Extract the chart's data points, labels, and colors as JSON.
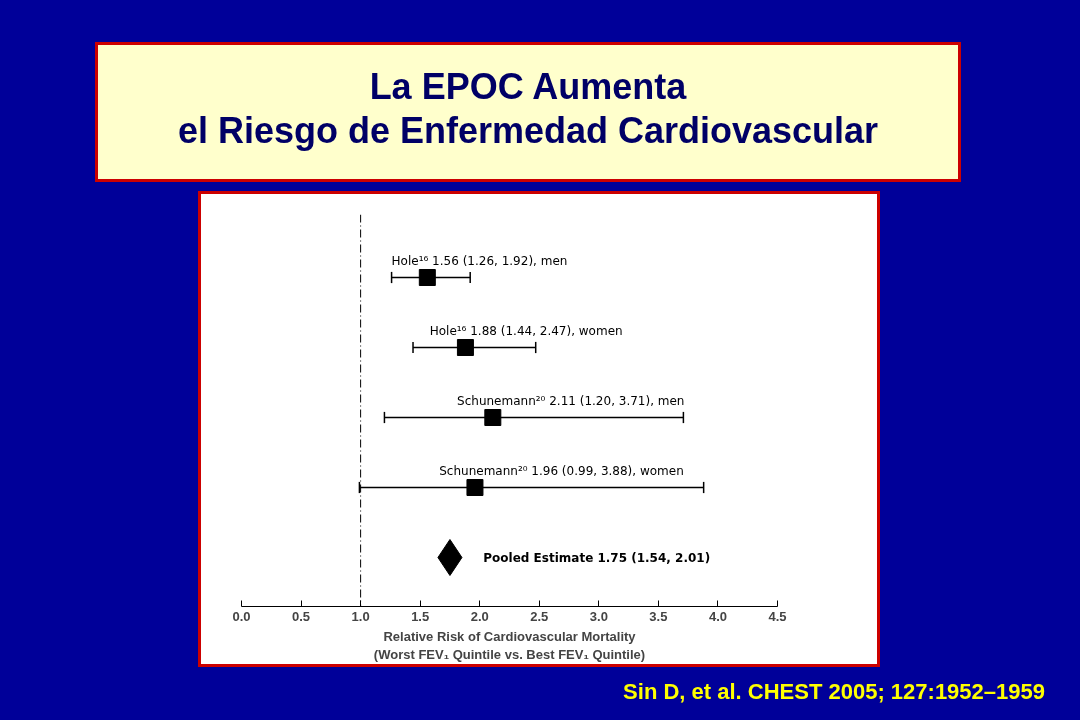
{
  "chart_data": {
    "type": "scatter",
    "orientation": "horizontal",
    "title": "La EPOC Aumenta\nel Riesgo de Enfermedad Cardiovascular",
    "xlabel": "Relative Risk of Cardiovascular Mortality\n(Worst FEV₁ Quintile vs. Best FEV₁ Quintile)",
    "categories": [
      null,
      null,
      null,
      null,
      null
    ],
    "series": [
      {
        "color": "#000000",
        "marker": "square",
        "values": [
          1.56,
          1.88,
          2.11,
          1.96,
          null
        ],
        "errors": [
          [
            1.26,
            1.92
          ],
          [
            1.44,
            2.47
          ],
          [
            1.2,
            3.71
          ],
          [
            0.99,
            3.88
          ],
          null
        ],
        "value_labels": [
          "Hole¹⁶ 1.56 (1.26, 1.92), men",
          "Hole¹⁶ 1.88 (1.44, 2.47), women",
          "Schunemann²⁰ 2.11 (1.20, 3.71), men",
          "Schunemann²⁰ 1.96 (0.99, 3.88), women",
          null
        ]
      },
      {
        "color": "#000000",
        "marker": "diamond",
        "values": [
          null,
          null,
          null,
          null,
          1.75
        ],
        "value_labels": [
          null,
          null,
          null,
          null,
          "Pooled Estimate 1.75 (1.54, 2.01)"
        ]
      }
    ],
    "xlim": [
      0,
      4.5
    ],
    "xticks": [
      {
        "value": 0,
        "label": "0.0"
      },
      0.5,
      {
        "value": 1,
        "label": "1.0"
      },
      1.5,
      {
        "value": 2,
        "label": "2.0"
      },
      2.5,
      {
        "value": 3,
        "label": "3.0"
      },
      3.5,
      {
        "value": 4,
        "label": "4.0"
      },
      4.5
    ],
    "tick_labels": "x",
    "grid": false,
    "ref_lines": [
      {
        "axis": "x",
        "value": 1.0,
        "color": "#000000",
        "line_style": "dashed"
      }
    ],
    "annotations": [
      "Sin D, et al. CHEST 2005; 127:1952–1959"
    ]
  }
}
